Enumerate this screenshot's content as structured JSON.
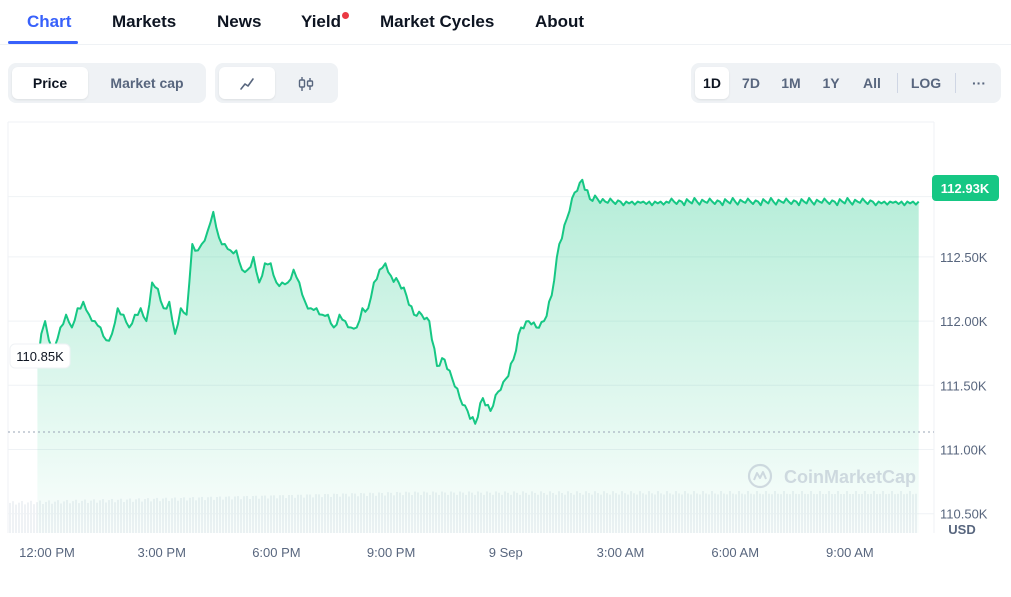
{
  "tabs": [
    {
      "label": "Chart",
      "active": true
    },
    {
      "label": "Markets"
    },
    {
      "label": "News"
    },
    {
      "label": "Yield",
      "dot": true
    },
    {
      "label": "Market Cycles"
    },
    {
      "label": "About"
    }
  ],
  "toolbar": {
    "data_type": {
      "options": [
        "Price",
        "Market cap"
      ],
      "selected": "Price"
    },
    "chart_type": {
      "options": [
        "line-chart-icon",
        "candlestick-icon"
      ],
      "selected": "line-chart-icon"
    },
    "ranges": [
      "1D",
      "7D",
      "1M",
      "1Y",
      "All"
    ],
    "selected_range": "1D",
    "log_label": "LOG",
    "more_label": "···"
  },
  "colors": {
    "accent": "#3861fb",
    "line": "#16c784",
    "badge": "#16c784",
    "notification": "#ea3943"
  },
  "chart_data": {
    "type": "area",
    "currency": "USD",
    "x_ticks": [
      "12:00 PM",
      "3:00 PM",
      "6:00 PM",
      "9:00 PM",
      "9 Sep",
      "3:00 AM",
      "6:00 AM",
      "9:00 AM"
    ],
    "y_ticks": [
      "112.50K",
      "112.00K",
      "111.50K",
      "111.00K",
      "110.50K"
    ],
    "ylim": [
      110.35,
      113.55
    ],
    "reference_price": 110.85,
    "reference_label": "110.85K",
    "current_price": 112.93,
    "current_label": "112.93K",
    "watermark": "CoinMarketCap",
    "x_hours_from_first_tick": [
      -0.25,
      -0.15,
      -0.05,
      0.05,
      0.2,
      0.35,
      0.5,
      0.65,
      0.8,
      0.95,
      1.1,
      1.25,
      1.4,
      1.55,
      1.7,
      1.85,
      2.0,
      2.15,
      2.3,
      2.45,
      2.6,
      2.75,
      2.9,
      3.05,
      3.2,
      3.35,
      3.5,
      3.65,
      3.8,
      3.95,
      4.05,
      4.2,
      4.35,
      4.5,
      4.65,
      4.8,
      4.95,
      5.1,
      5.25,
      5.4,
      5.55,
      5.7,
      5.85,
      6.0,
      6.15,
      6.3,
      6.45,
      6.6,
      6.75,
      6.9,
      7.05,
      7.2,
      7.35,
      7.5,
      7.65,
      7.8,
      7.95,
      8.1,
      8.25,
      8.4,
      8.55,
      8.7,
      8.85,
      9.0,
      9.2,
      9.4,
      9.6,
      9.8,
      10.0,
      10.2,
      10.4,
      10.6,
      10.8,
      11.0,
      11.2,
      11.4,
      11.6,
      11.8,
      12.0,
      12.2,
      12.4,
      12.6,
      12.8,
      13.0,
      13.2,
      13.4,
      13.6,
      13.8,
      14.0,
      14.2,
      14.4,
      14.6,
      14.8,
      15.0,
      15.15,
      15.3,
      15.45,
      15.6,
      15.75,
      15.9,
      16.05,
      16.2,
      16.4,
      16.6,
      16.8,
      17.0,
      17.2,
      17.4,
      17.6,
      17.8,
      18.0,
      18.2,
      18.4,
      18.6,
      18.8,
      19.0,
      19.2,
      19.4,
      19.6,
      19.8,
      20.0,
      20.2,
      20.4,
      20.6,
      20.8,
      21.0,
      21.2,
      21.4,
      21.6,
      21.75,
      21.9,
      22.05,
      22.2,
      22.35,
      22.5,
      22.65,
      22.8,
      22.95,
      23.1,
      23.25,
      23.4,
      23.55,
      23.7
    ],
    "y_price_k": [
      111.65,
      111.9,
      112.0,
      111.85,
      111.8,
      111.95,
      112.05,
      111.95,
      112.1,
      112.15,
      112.05,
      112.0,
      111.95,
      111.85,
      111.9,
      112.1,
      112.05,
      111.95,
      112.05,
      112.1,
      112.0,
      112.3,
      112.25,
      112.1,
      112.15,
      111.9,
      112.1,
      112.05,
      112.6,
      112.55,
      112.6,
      112.7,
      112.85,
      112.65,
      112.6,
      112.55,
      112.55,
      112.4,
      112.4,
      112.5,
      112.3,
      112.45,
      112.45,
      112.3,
      112.3,
      112.3,
      112.4,
      112.3,
      112.15,
      112.1,
      112.1,
      112.05,
      112.05,
      111.95,
      112.05,
      112.0,
      111.95,
      111.95,
      112.1,
      112.1,
      112.3,
      112.4,
      112.45,
      112.35,
      112.3,
      112.2,
      112.05,
      112.05,
      112.0,
      111.65,
      111.7,
      111.55,
      111.4,
      111.3,
      111.2,
      111.4,
      111.3,
      111.45,
      111.55,
      111.7,
      111.95,
      112.0,
      111.95,
      112.0,
      112.2,
      112.6,
      112.8,
      113.0,
      113.1,
      112.95,
      112.95,
      112.93,
      112.93,
      112.93,
      112.93,
      112.93,
      112.93,
      112.93,
      112.93,
      112.93,
      112.93,
      112.93,
      112.93,
      112.93,
      112.93,
      112.93,
      112.93,
      112.93,
      112.93,
      112.93,
      112.93,
      112.93,
      112.93,
      112.93,
      112.93,
      112.93,
      112.93,
      112.93,
      112.93,
      112.93,
      112.93,
      112.93,
      112.93,
      112.93,
      112.93,
      112.93,
      112.93,
      112.93,
      112.93,
      112.93,
      112.93,
      112.93,
      112.93,
      112.93,
      112.93,
      112.93,
      112.93,
      112.93,
      112.93,
      112.93,
      112.93,
      112.93,
      112.93
    ]
  }
}
